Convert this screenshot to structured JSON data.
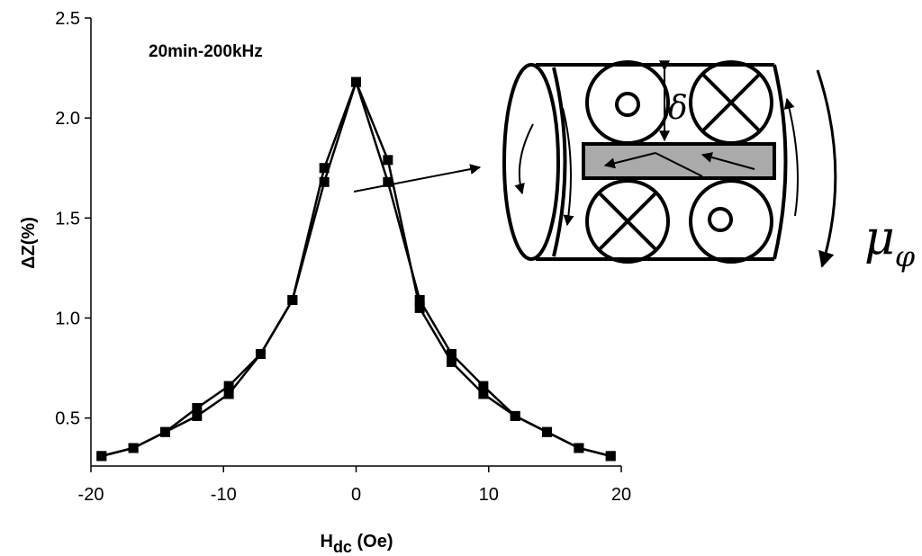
{
  "chart_data": {
    "type": "line",
    "annotation": "20min-200kHz",
    "y_label": "ΔZ(%)",
    "x_label": [
      "H",
      "dc",
      " (Oe)"
    ],
    "x": [
      -19.2,
      -16.8,
      -14.4,
      -12,
      -9.6,
      -7.2,
      -4.8,
      -2.4,
      0,
      2.4,
      4.8,
      7.2,
      9.6,
      12,
      14.4,
      16.8,
      19.2
    ],
    "series": [
      {
        "color": "#000000",
        "values": [
          0.31,
          0.35,
          0.43,
          0.51,
          0.62,
          0.82,
          1.09,
          1.68,
          2.18,
          1.79,
          1.05,
          0.78,
          0.62,
          0.51,
          0.43,
          0.35,
          0.31
        ]
      },
      {
        "color": "#000000",
        "values": [
          0.31,
          0.35,
          0.43,
          0.55,
          0.66,
          0.82,
          1.09,
          1.75,
          2.18,
          1.68,
          1.09,
          0.82,
          0.66,
          0.51,
          0.43,
          0.35,
          0.31
        ]
      }
    ],
    "xlim": [
      -20,
      20
    ],
    "xticks": [
      -20,
      -10,
      0,
      10,
      20
    ],
    "ylim": [
      0.26,
      2.5
    ],
    "yticks": [
      0.5,
      {
        "value": 1,
        "label": "1.0"
      },
      1.5,
      {
        "value": 2,
        "label": "2.0"
      },
      2.5
    ],
    "grid": false
  },
  "inset": {
    "gap_label": "δ",
    "permeability_label": [
      "μ",
      "φ"
    ]
  }
}
